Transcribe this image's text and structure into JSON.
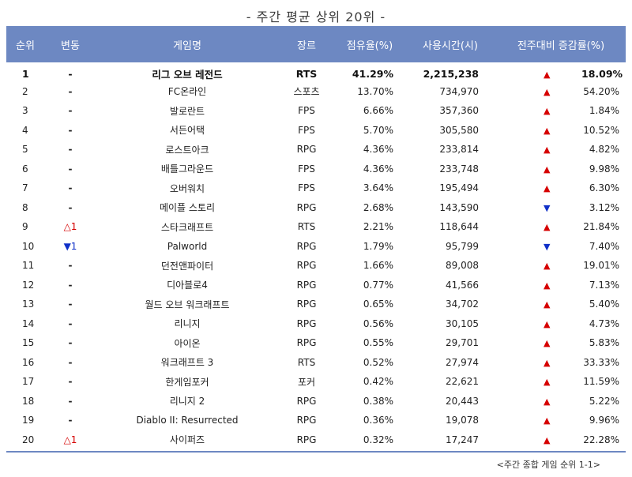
{
  "title": "- 주간 평균 상위 20위 -",
  "headers": [
    "순위",
    "변동",
    "게임명",
    "장르",
    "점유율(%)",
    "사용시간(시)",
    "전주대비 증감률(%)"
  ],
  "rows": [
    {
      "rank": "1",
      "change": "-",
      "change_dir": "none",
      "game": "리그 오브 레전드",
      "genre": "RTS",
      "share": "41.29%",
      "hours": "2,215,238",
      "trend": "up",
      "pct": "18.09%"
    },
    {
      "rank": "2",
      "change": "-",
      "change_dir": "none",
      "game": "FC온라인",
      "genre": "스포츠",
      "share": "13.70%",
      "hours": "734,970",
      "trend": "up",
      "pct": "54.20%"
    },
    {
      "rank": "3",
      "change": "-",
      "change_dir": "none",
      "game": "발로란트",
      "genre": "FPS",
      "share": "6.66%",
      "hours": "357,360",
      "trend": "up",
      "pct": "1.84%"
    },
    {
      "rank": "4",
      "change": "-",
      "change_dir": "none",
      "game": "서든어택",
      "genre": "FPS",
      "share": "5.70%",
      "hours": "305,580",
      "trend": "up",
      "pct": "10.52%"
    },
    {
      "rank": "5",
      "change": "-",
      "change_dir": "none",
      "game": "로스트아크",
      "genre": "RPG",
      "share": "4.36%",
      "hours": "233,814",
      "trend": "up",
      "pct": "4.82%"
    },
    {
      "rank": "6",
      "change": "-",
      "change_dir": "none",
      "game": "배틀그라운드",
      "genre": "FPS",
      "share": "4.36%",
      "hours": "233,748",
      "trend": "up",
      "pct": "9.98%"
    },
    {
      "rank": "7",
      "change": "-",
      "change_dir": "none",
      "game": "오버워치",
      "genre": "FPS",
      "share": "3.64%",
      "hours": "195,494",
      "trend": "up",
      "pct": "6.30%"
    },
    {
      "rank": "8",
      "change": "-",
      "change_dir": "none",
      "game": "메이플 스토리",
      "genre": "RPG",
      "share": "2.68%",
      "hours": "143,590",
      "trend": "down",
      "pct": "3.12%"
    },
    {
      "rank": "9",
      "change": "△1",
      "change_dir": "up",
      "game": "스타크래프트",
      "genre": "RTS",
      "share": "2.21%",
      "hours": "118,644",
      "trend": "up",
      "pct": "21.84%"
    },
    {
      "rank": "10",
      "change": "▼1",
      "change_dir": "down",
      "game": "Palworld",
      "genre": "RPG",
      "share": "1.79%",
      "hours": "95,799",
      "trend": "down",
      "pct": "7.40%"
    },
    {
      "rank": "11",
      "change": "-",
      "change_dir": "none",
      "game": "던전앤파이터",
      "genre": "RPG",
      "share": "1.66%",
      "hours": "89,008",
      "trend": "up",
      "pct": "19.01%"
    },
    {
      "rank": "12",
      "change": "-",
      "change_dir": "none",
      "game": "디아블로4",
      "genre": "RPG",
      "share": "0.77%",
      "hours": "41,566",
      "trend": "up",
      "pct": "7.13%"
    },
    {
      "rank": "13",
      "change": "-",
      "change_dir": "none",
      "game": "월드 오브 워크래프트",
      "genre": "RPG",
      "share": "0.65%",
      "hours": "34,702",
      "trend": "up",
      "pct": "5.40%"
    },
    {
      "rank": "14",
      "change": "-",
      "change_dir": "none",
      "game": "리니지",
      "genre": "RPG",
      "share": "0.56%",
      "hours": "30,105",
      "trend": "up",
      "pct": "4.73%"
    },
    {
      "rank": "15",
      "change": "-",
      "change_dir": "none",
      "game": "아이온",
      "genre": "RPG",
      "share": "0.55%",
      "hours": "29,701",
      "trend": "up",
      "pct": "5.83%"
    },
    {
      "rank": "16",
      "change": "-",
      "change_dir": "none",
      "game": "워크래프트 3",
      "genre": "RTS",
      "share": "0.52%",
      "hours": "27,974",
      "trend": "up",
      "pct": "33.33%"
    },
    {
      "rank": "17",
      "change": "-",
      "change_dir": "none",
      "game": "한게임포커",
      "genre": "포커",
      "share": "0.42%",
      "hours": "22,621",
      "trend": "up",
      "pct": "11.59%"
    },
    {
      "rank": "18",
      "change": "-",
      "change_dir": "none",
      "game": "리니지 2",
      "genre": "RPG",
      "share": "0.38%",
      "hours": "20,443",
      "trend": "up",
      "pct": "5.22%"
    },
    {
      "rank": "19",
      "change": "-",
      "change_dir": "none",
      "game": "Diablo II: Resurrected",
      "genre": "RPG",
      "share": "0.36%",
      "hours": "19,078",
      "trend": "up",
      "pct": "9.96%"
    },
    {
      "rank": "20",
      "change": "△1",
      "change_dir": "up",
      "game": "사이퍼즈",
      "genre": "RPG",
      "share": "0.32%",
      "hours": "17,247",
      "trend": "up",
      "pct": "22.28%"
    }
  ],
  "footnote": "<주간 종합 게임 순위 1-1>",
  "colors": {
    "header_bg": "#6d88c2",
    "up": "#d60000",
    "down": "#1030c8"
  }
}
